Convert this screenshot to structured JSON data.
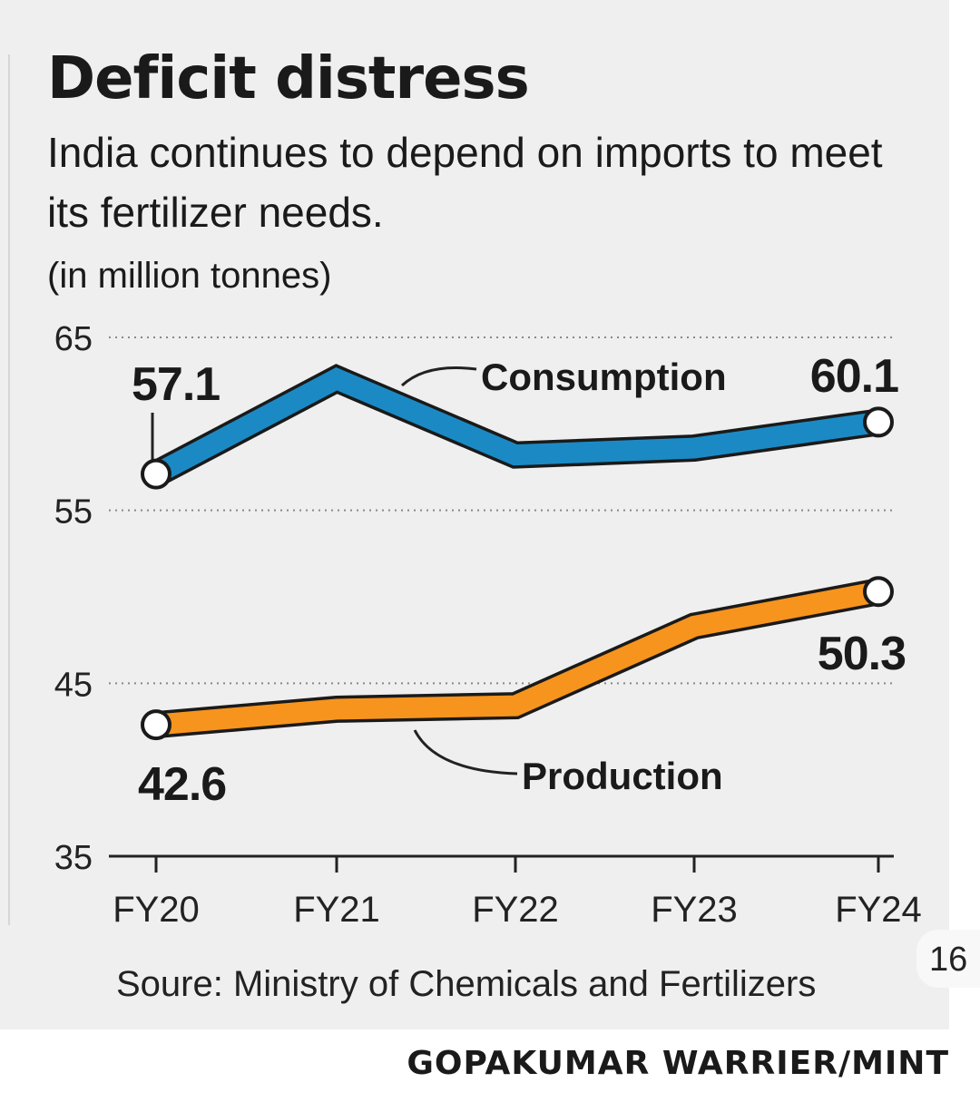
{
  "chart_data": {
    "type": "line",
    "title": "Deficit distress",
    "subtitle": "India continues to depend on imports to meet its fertilizer needs.",
    "unit": "(in million tonnes)",
    "categories": [
      "FY20",
      "FY21",
      "FY22",
      "FY23",
      "FY24"
    ],
    "ylim": [
      35,
      65
    ],
    "yticks": [
      35,
      45,
      55,
      65
    ],
    "grid": true,
    "series": [
      {
        "name": "Consumption",
        "values": [
          57.1,
          62.6,
          58.2,
          58.6,
          60.1
        ],
        "color": "#1b8ac4",
        "labels": {
          "first": "57.1",
          "last": "60.1"
        }
      },
      {
        "name": "Production",
        "values": [
          42.6,
          43.5,
          43.7,
          48.3,
          50.3
        ],
        "color": "#f7941d",
        "labels": {
          "first": "42.6",
          "last": "50.3"
        }
      }
    ],
    "source": "Soure: Ministry of Chemicals and Fertilizers",
    "credit": "GOPAKUMAR WARRIER/MINT"
  },
  "overlay": {
    "page_number": "16"
  }
}
